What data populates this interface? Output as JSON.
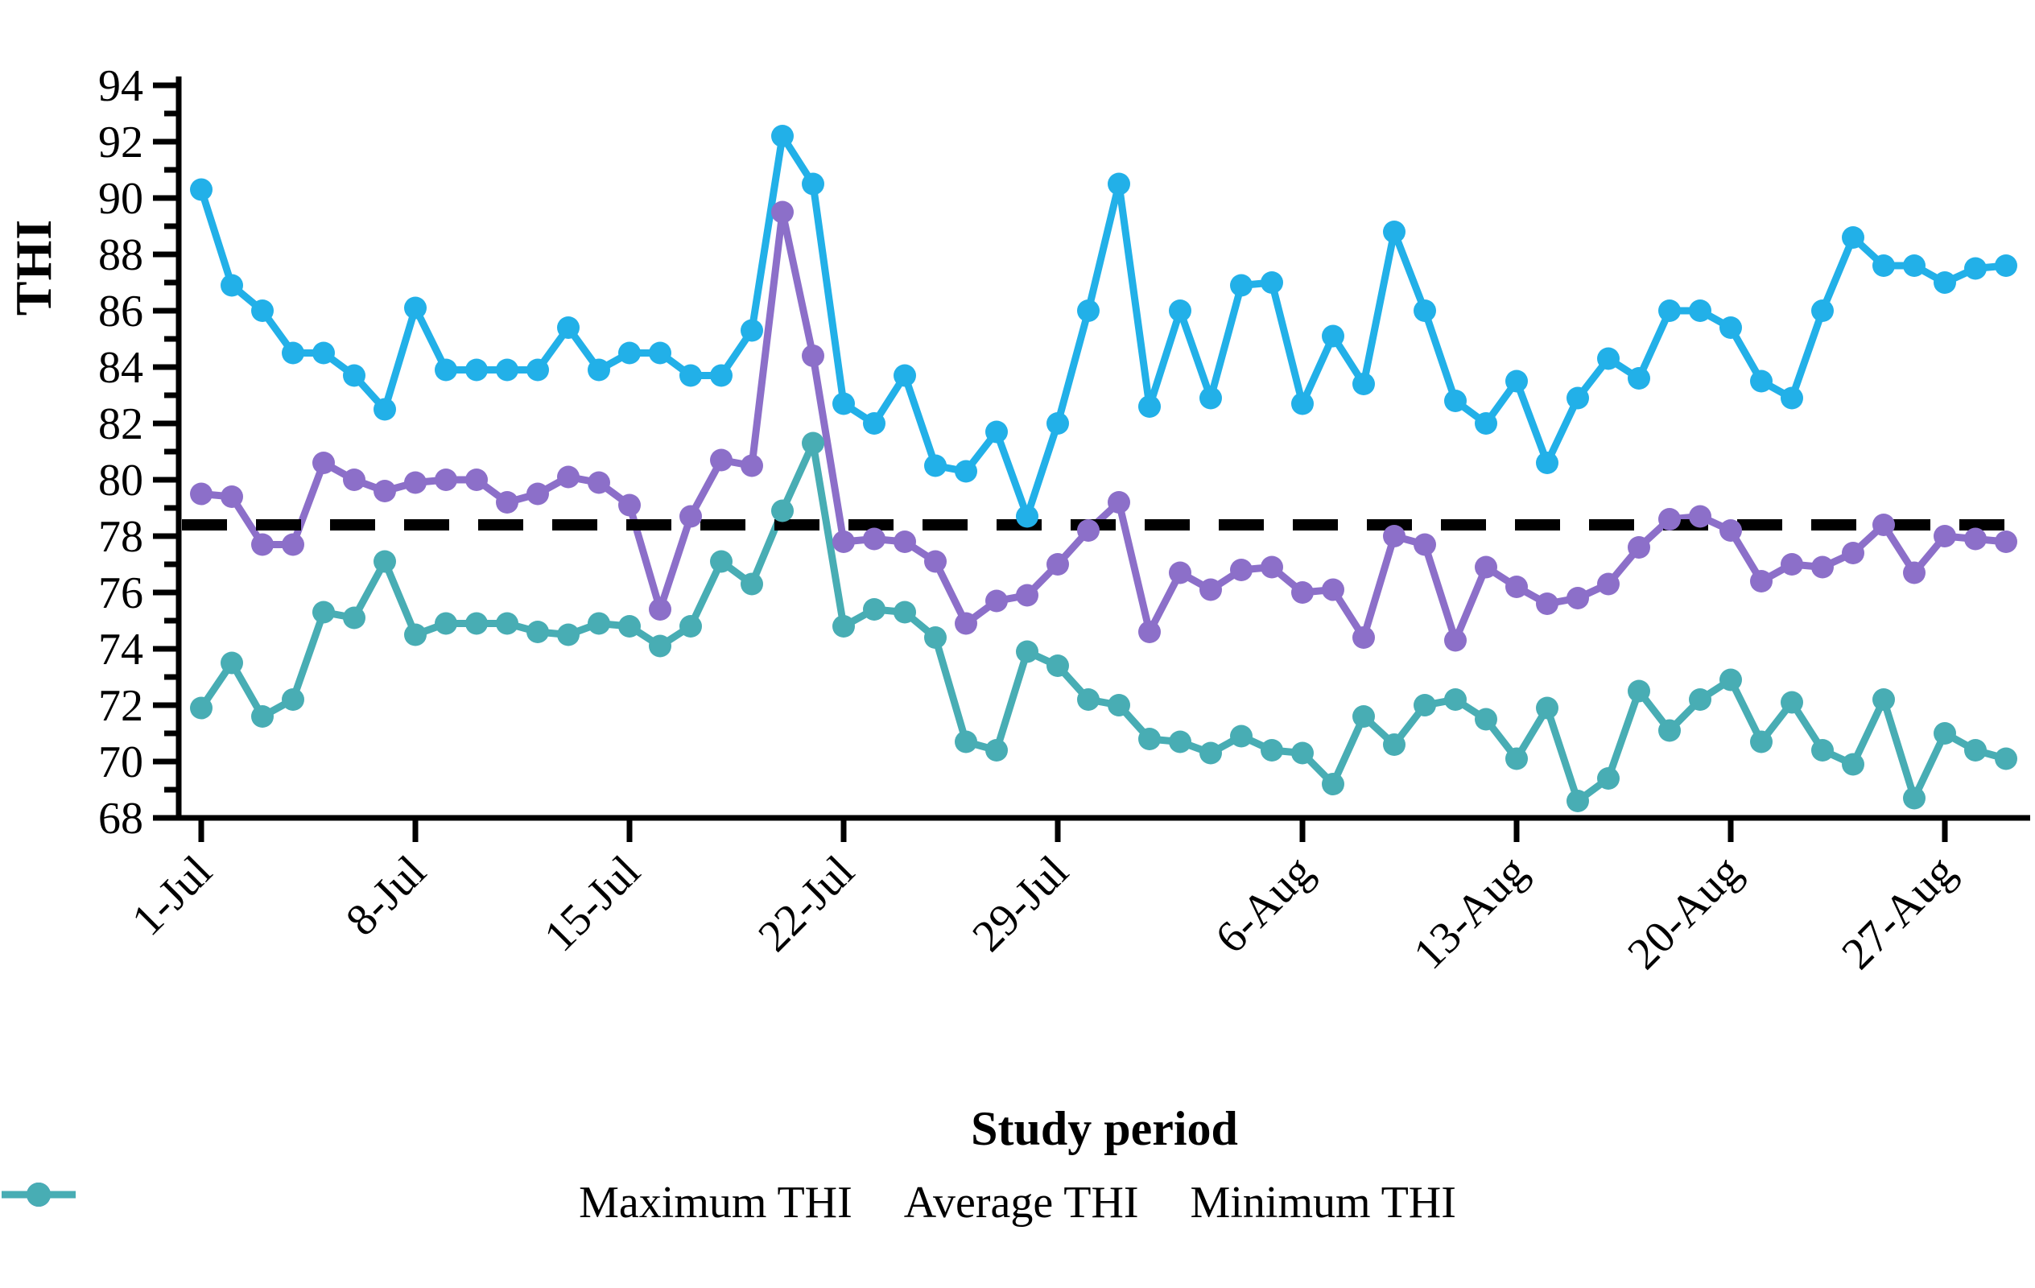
{
  "chart_data": {
    "type": "line",
    "title": "",
    "xlabel": "Study period",
    "ylabel": "THI",
    "ylim": [
      68,
      94
    ],
    "yticks": [
      68,
      70,
      72,
      74,
      76,
      78,
      80,
      82,
      84,
      86,
      88,
      90,
      92,
      94
    ],
    "minor_yticks_every": 1,
    "grid": false,
    "legend_position": "bottom",
    "xtick_labels": [
      "1-Jul",
      "8-Jul",
      "15-Jul",
      "22-Jul",
      "29-Jul",
      "6-Aug",
      "13-Aug",
      "20-Aug",
      "27-Aug"
    ],
    "xtick_day_indices": [
      0,
      7,
      14,
      21,
      28,
      36,
      43,
      50,
      57
    ],
    "x_index_dates": [
      "1-Jul",
      "2-Jul",
      "3-Jul",
      "4-Jul",
      "5-Jul",
      "6-Jul",
      "7-Jul",
      "8-Jul",
      "9-Jul",
      "10-Jul",
      "11-Jul",
      "12-Jul",
      "13-Jul",
      "14-Jul",
      "15-Jul",
      "16-Jul",
      "17-Jul",
      "18-Jul",
      "19-Jul",
      "20-Jul",
      "21-Jul",
      "22-Jul",
      "23-Jul",
      "24-Jul",
      "25-Jul",
      "26-Jul",
      "27-Jul",
      "28-Jul",
      "29-Jul",
      "30-Jul",
      "31-Jul",
      "1-Aug",
      "2-Aug",
      "3-Aug",
      "4-Aug",
      "5-Aug",
      "6-Aug",
      "7-Aug",
      "8-Aug",
      "9-Aug",
      "10-Aug",
      "11-Aug",
      "12-Aug",
      "13-Aug",
      "14-Aug",
      "15-Aug",
      "16-Aug",
      "17-Aug",
      "18-Aug",
      "19-Aug",
      "20-Aug",
      "21-Aug",
      "22-Aug",
      "23-Aug",
      "24-Aug",
      "25-Aug",
      "26-Aug",
      "27-Aug",
      "28-Aug",
      "29-Aug"
    ],
    "threshold_line": {
      "value": 78.4,
      "color": "#000000",
      "style": "dashed"
    },
    "series": [
      {
        "name": "Maximum THI",
        "color": "#22B0E8",
        "values": [
          90.3,
          86.9,
          86.0,
          84.5,
          84.5,
          83.7,
          82.5,
          86.1,
          83.9,
          83.9,
          83.9,
          83.9,
          85.4,
          83.9,
          84.5,
          84.5,
          83.7,
          83.7,
          85.3,
          92.2,
          90.5,
          82.7,
          82.0,
          83.7,
          80.5,
          80.3,
          81.7,
          78.7,
          82.0,
          86.0,
          90.5,
          82.6,
          86.0,
          82.9,
          86.9,
          87.0,
          82.7,
          85.1,
          83.4,
          88.8,
          86.0,
          82.8,
          82.0,
          83.5,
          80.6,
          82.9,
          84.3,
          83.6,
          86.0,
          86.0,
          85.4,
          83.5,
          82.9,
          86.0,
          88.6,
          87.6,
          87.6,
          87.0,
          87.5,
          87.6
        ]
      },
      {
        "name": "Average THI",
        "color": "#8C6FC9",
        "values": [
          79.5,
          79.4,
          77.7,
          77.7,
          80.6,
          80.0,
          79.6,
          79.9,
          80.0,
          80.0,
          79.2,
          79.5,
          80.1,
          79.9,
          79.1,
          75.4,
          78.7,
          80.7,
          80.5,
          89.5,
          84.4,
          77.8,
          77.9,
          77.8,
          77.1,
          74.9,
          75.7,
          75.9,
          77.0,
          78.2,
          79.2,
          74.6,
          76.7,
          76.1,
          76.8,
          76.9,
          76.0,
          76.1,
          74.4,
          78.0,
          77.7,
          74.3,
          76.9,
          76.2,
          75.6,
          75.8,
          76.3,
          77.6,
          78.6,
          78.7,
          78.2,
          76.4,
          77.0,
          76.9,
          77.4,
          78.4,
          76.7,
          78.0,
          77.9,
          77.8
        ]
      },
      {
        "name": "Minimum THI",
        "color": "#48ADB4",
        "values": [
          71.9,
          73.5,
          71.6,
          72.2,
          75.3,
          75.1,
          77.1,
          74.5,
          74.9,
          74.9,
          74.9,
          74.6,
          74.5,
          74.9,
          74.8,
          74.1,
          74.8,
          77.1,
          76.3,
          78.9,
          81.3,
          74.8,
          75.4,
          75.3,
          74.4,
          70.7,
          70.4,
          73.9,
          73.4,
          72.2,
          72.0,
          70.8,
          70.7,
          70.3,
          70.9,
          70.4,
          70.3,
          69.2,
          71.6,
          70.6,
          72.0,
          72.2,
          71.5,
          70.1,
          71.9,
          68.6,
          69.4,
          72.5,
          71.1,
          72.2,
          72.9,
          70.7,
          72.1,
          70.4,
          69.9,
          72.2,
          68.7,
          71.0,
          70.4,
          70.1
        ]
      }
    ]
  }
}
